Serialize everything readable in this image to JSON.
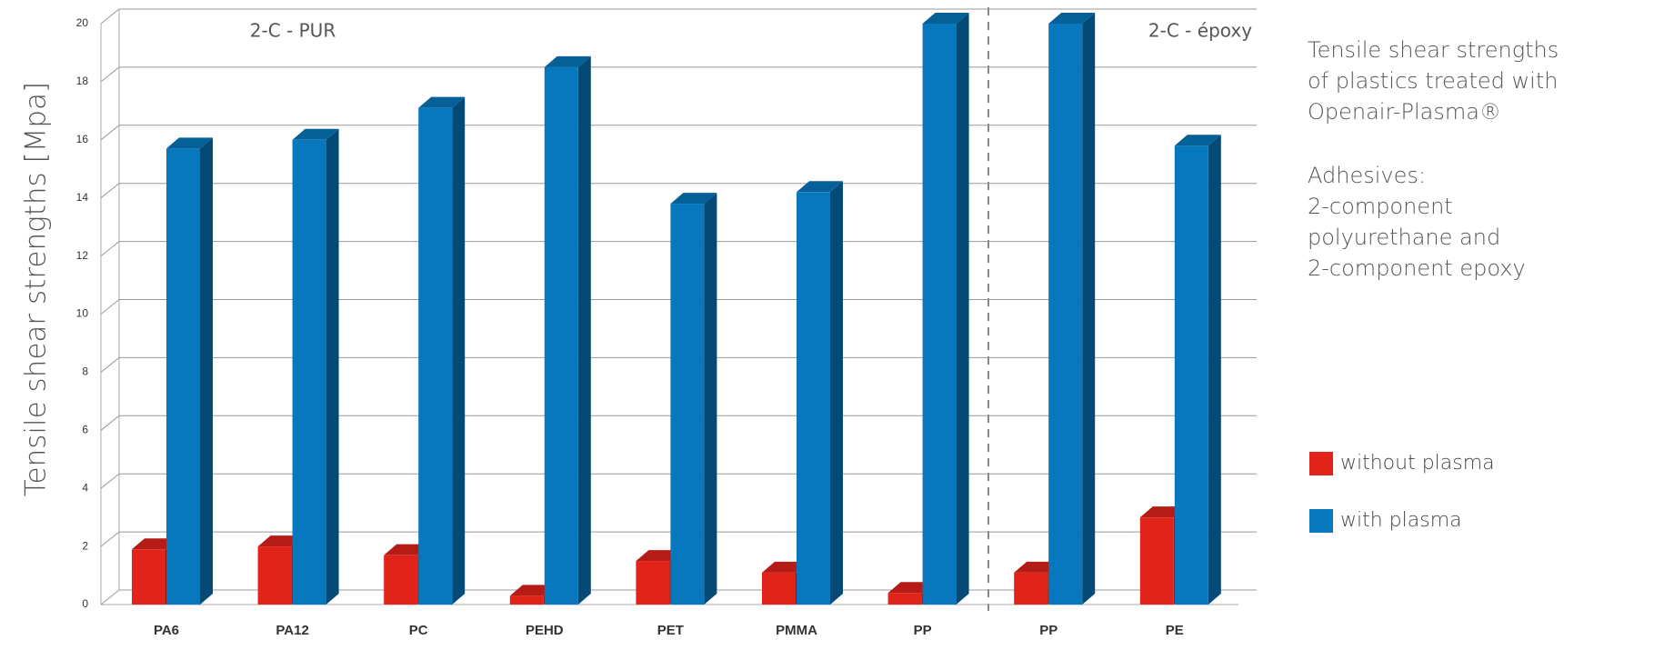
{
  "chart_data": {
    "type": "bar3d",
    "y_label": "Tensile shear strengths  [Mpa]",
    "group_labels": [
      "2-C - PUR",
      "2-C - époxy"
    ],
    "categories": [
      "PA6",
      "PA12",
      "PC",
      "PEHD",
      "PET",
      "PMMA",
      "PP",
      "PP",
      "PE"
    ],
    "series": [
      {
        "name": "without plasma",
        "color": "#e2231a",
        "values": [
          1.9,
          2.0,
          1.7,
          0.3,
          1.5,
          1.1,
          0.4,
          1.1,
          3.0
        ]
      },
      {
        "name": "with plasma",
        "color": "#0878be",
        "values": [
          15.7,
          16.0,
          17.1,
          18.5,
          13.8,
          14.2,
          20.0,
          20.0,
          15.8
        ]
      }
    ],
    "ylim": [
      0,
      20
    ],
    "yticks": [
      0,
      2,
      4,
      6,
      8,
      10,
      12,
      14,
      16,
      18,
      20
    ],
    "grid": true,
    "description": [
      "Tensile shear strengths",
      "of plastics treated with",
      "Openair-Plasma®"
    ],
    "adhesives": [
      "Adhesives:",
      "2-component",
      "polyurethane and",
      "2-component epoxy"
    ]
  }
}
